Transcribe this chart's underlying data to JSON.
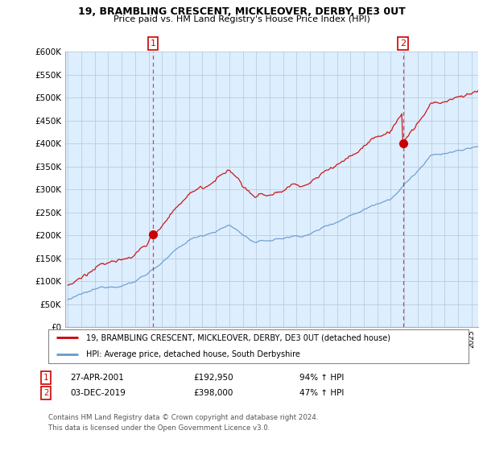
{
  "title": "19, BRAMBLING CRESCENT, MICKLEOVER, DERBY, DE3 0UT",
  "subtitle": "Price paid vs. HM Land Registry's House Price Index (HPI)",
  "ylim": [
    0,
    600000
  ],
  "yticks": [
    0,
    50000,
    100000,
    150000,
    200000,
    250000,
    300000,
    350000,
    400000,
    450000,
    500000,
    550000,
    600000
  ],
  "xlim_start": 1994.8,
  "xlim_end": 2025.5,
  "sale1_year": 2001.32,
  "sale1_price": 192950,
  "sale2_year": 2019.92,
  "sale2_price": 398000,
  "legend_line1": "19, BRAMBLING CRESCENT, MICKLEOVER, DERBY, DE3 0UT (detached house)",
  "legend_line2": "HPI: Average price, detached house, South Derbyshire",
  "table_row1_num": "1",
  "table_row1_date": "27-APR-2001",
  "table_row1_price": "£192,950",
  "table_row1_hpi": "94% ↑ HPI",
  "table_row2_num": "2",
  "table_row2_date": "03-DEC-2019",
  "table_row2_price": "£398,000",
  "table_row2_hpi": "47% ↑ HPI",
  "footer": "Contains HM Land Registry data © Crown copyright and database right 2024.\nThis data is licensed under the Open Government Licence v3.0.",
  "line_color_red": "#cc0000",
  "line_color_blue": "#6699cc",
  "bg_chart": "#ddeeff",
  "background_color": "#ffffff",
  "grid_color": "#bbccdd"
}
